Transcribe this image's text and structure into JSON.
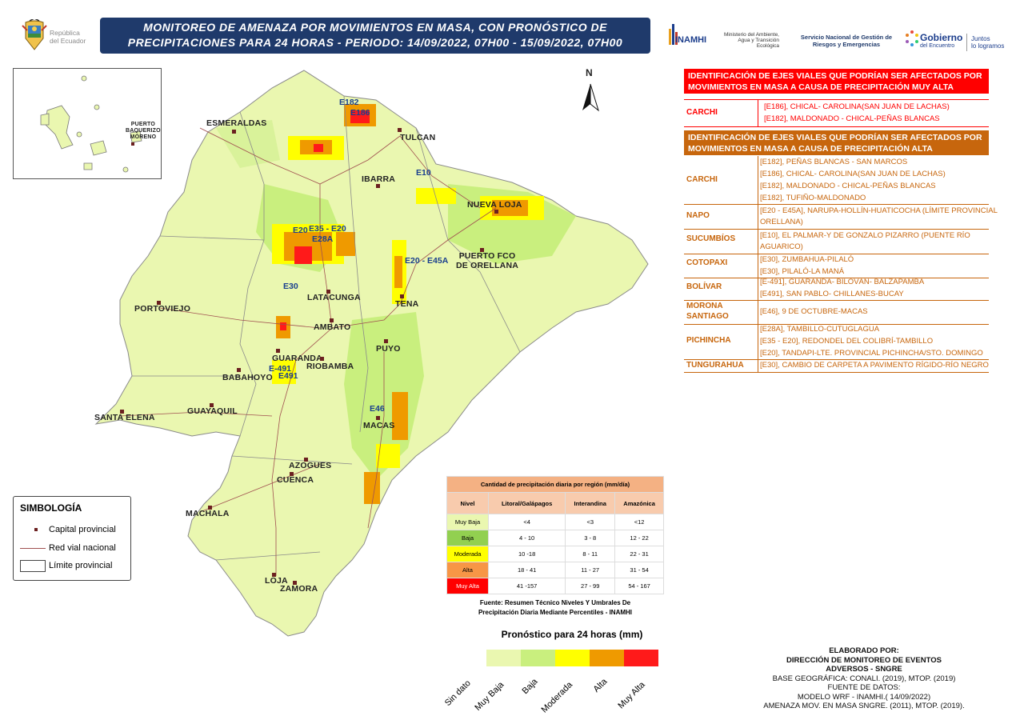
{
  "header": {
    "country_logo_text_1": "República",
    "country_logo_text_2": "del Ecuador",
    "title_line_1": "MONITOREO DE AMENAZA POR MOVIMIENTOS EN MASA, CON PRONÓSTICO DE",
    "title_line_2": "PRECIPITACIONES PARA 24 HORAS - PERIODO: 14/09/2022, 07H00 - 15/09/2022, 07H00",
    "logo_inamhi": "INAMHI",
    "logo_ministerio": "Ministerio del Ambiente, Agua y Transición Ecológica",
    "logo_sngre": "Servicio Nacional de Gestión de Riesgos y Emergencias",
    "logo_gobierno_1": "Gobierno",
    "logo_gobierno_2": "del Encuentro",
    "logo_juntos_1": "Juntos",
    "logo_juntos_2": "lo logramos",
    "colors": {
      "title_bg": "#1f3a6b",
      "brand_blue": "#1b3d8c"
    }
  },
  "map": {
    "north_label": "N",
    "inset_label_1": "PUERTO",
    "inset_label_2": "BAQUERIZO",
    "inset_label_3": "MORENO",
    "places": {
      "esmeraldas": "ESMERALDAS",
      "tulcan": "TULCAN",
      "ibarra": "IBARRA",
      "nueva_loja": "NUEVA LOJA",
      "puerto_orellana_1": "PUERTO FCO",
      "puerto_orellana_2": "DE ORELLANA",
      "latacunga": "LATACUNGA",
      "tena": "TENA",
      "portoviejo": "PORTOVIEJO",
      "ambato": "AMBATO",
      "guaranda": "GUARANDA",
      "riobamba": "RIOBAMBA",
      "puyo": "PUYO",
      "babahoyo": "BABAHOYO",
      "guayaquil": "GUAYAQUIL",
      "santa_elena": "SANTA ELENA",
      "macas": "MACAS",
      "azogues": "AZOGUES",
      "cuenca": "CUENCA",
      "machala": "MACHALA",
      "loja": "LOJA",
      "zamora": "ZAMORA"
    },
    "roads": {
      "e182": "E182",
      "e186": "E186",
      "e10": "E10",
      "e20": "E20",
      "e35_e20": "E35 - E20",
      "e28a": "E28A",
      "e20_e45a": "E20 - E45A",
      "e30": "E30",
      "e491a": "E-491",
      "e491b": "E491",
      "e46": "E46"
    },
    "colors": {
      "muy_baja": "#eaf7b0",
      "baja": "#c9ef7e",
      "moderada": "#ffff00",
      "alta": "#ef9a00",
      "muy_alta": "#ff1a1a",
      "roads": "#a05050"
    }
  },
  "simbologia": {
    "title": "SIMBOLOGÍA",
    "items": [
      "Capital provincial",
      "Red vial nacional",
      "Límite provincial"
    ]
  },
  "threshold_table": {
    "title": "Cantidad de precipitación diaria por región (mm/día)",
    "columns": [
      "Nivel",
      "Litoral/Galápagos",
      "Interandina",
      "Amazónica"
    ],
    "rows": [
      {
        "nivel": "Muy Baja",
        "litoral": "<4",
        "interandina": "<3",
        "amazonica": "<12",
        "color": "#eaf7b0"
      },
      {
        "nivel": "Baja",
        "litoral": "4 - 10",
        "interandina": "3 - 8",
        "amazonica": "12 - 22",
        "color": "#92d050"
      },
      {
        "nivel": "Moderada",
        "litoral": "10 -18",
        "interandina": "8 - 11",
        "amazonica": "22 - 31",
        "color": "#ffff00"
      },
      {
        "nivel": "Alta",
        "litoral": "18 - 41",
        "interandina": "11 - 27",
        "amazonica": "31 - 54",
        "color": "#f79646"
      },
      {
        "nivel": "Muy Alta",
        "litoral": "41 -157",
        "interandina": "27 - 99",
        "amazonica": "54 - 167",
        "color": "#ff0000"
      }
    ],
    "source_1": "Fuente: Resumen Técnico Niveles Y Umbrales De",
    "source_2": "Precipitación Diaria Mediante Percentiles - INAMHI"
  },
  "forecast_legend": {
    "title": "Pronóstico para 24 horas (mm)",
    "items": [
      {
        "label": "Sin dato",
        "color": "#ffffff"
      },
      {
        "label": "Muy Baja",
        "color": "#eaf7b0"
      },
      {
        "label": "Baja",
        "color": "#c9ef7e"
      },
      {
        "label": "Moderada",
        "color": "#ffff00"
      },
      {
        "label": "Alta",
        "color": "#ef9a00"
      },
      {
        "label": "Muy Alta",
        "color": "#ff1a1a"
      }
    ]
  },
  "muy_alta_table": {
    "header_1": "IDENTIFICACIÓN DE EJES VIALES QUE PODRÍAN SER AFECTADOS POR",
    "header_2": "MOVIMIENTOS EN MASA A CAUSA DE  PRECIPITACIÓN MUY ALTA",
    "rows": [
      {
        "province": "CARCHI",
        "roads": [
          "[E186], CHICAL- CAROLINA(SAN JUAN DE LACHAS)",
          "[E182], MALDONADO - CHICAL-PEÑAS BLANCAS"
        ]
      }
    ]
  },
  "alta_table": {
    "header_1": "IDENTIFICACIÓN DE EJES VIALES QUE PODRÍAN SER AFECTADOS POR",
    "header_2": "MOVIMIENTOS EN MASA A CAUSA DE  PRECIPITACIÓN ALTA",
    "rows": [
      {
        "province": "CARCHI",
        "roads": [
          "[E182], PEÑAS BLANCAS - SAN MARCOS",
          "[E186], CHICAL- CAROLINA(SAN JUAN DE LACHAS)",
          "[E182], MALDONADO - CHICAL-PEÑAS BLANCAS",
          "[E182], TUFIÑO-MALDONADO"
        ]
      },
      {
        "province": "NAPO",
        "roads": [
          "[E20 - E45A], NARUPA-HOLLÍN-HUATICOCHA (LÍMITE PROVINCIAL",
          "ORELLANA)"
        ]
      },
      {
        "province": "SUCUMBÍOS",
        "roads": [
          "[E10], EL PALMAR-Y DE GONZALO PIZARRO (PUENTE RÍO",
          "AGUARICO)"
        ]
      },
      {
        "province": "COTOPAXI",
        "roads": [
          "[E30], ZUMBAHUA-PILALÓ",
          "[E30], PILALÓ-LA MANÁ"
        ]
      },
      {
        "province": "BOLÍVAR",
        "roads": [
          "[E-491], GUARANDA- BILOVÁN- BALZAPAMBA",
          "[E491], SAN PABLO- CHILLANES-BUCAY"
        ]
      },
      {
        "province": "MORONA SANTIAGO",
        "roads": [
          "[E46], 9 DE OCTUBRE-MACAS"
        ]
      },
      {
        "province": "PICHINCHA",
        "roads": [
          "[E28A], TAMBILLO-CUTUGLAGUA",
          "[E35 - E20], REDONDEL DEL COLIBRÍ-TAMBILLO",
          "[E20], TANDAPI-LTE. PROVINCIAL PICHINCHA/STO. DOMINGO"
        ]
      },
      {
        "province": "TUNGURAHUA",
        "roads": [
          "[E30], CAMBIO DE CARPETA A PAVIMENTO RÍGIDO-RÍO NEGRO"
        ]
      }
    ]
  },
  "credits": {
    "line_1": "ELABORADO POR:",
    "line_2": "DIRECCIÓN DE MONITOREO DE EVENTOS",
    "line_3": "ADVERSOS - SNGRE",
    "line_4": "BASE GEOGRÁFICA: CONALI. (2019), MTOP. (2019)",
    "line_5": "FUENTE DE DATOS:",
    "line_6": "MODELO WRF - INAMHI.( 14/09/2022)",
    "line_7": "AMENAZA MOV. EN MASA SNGRE. (2011), MTOP. (2019)."
  }
}
